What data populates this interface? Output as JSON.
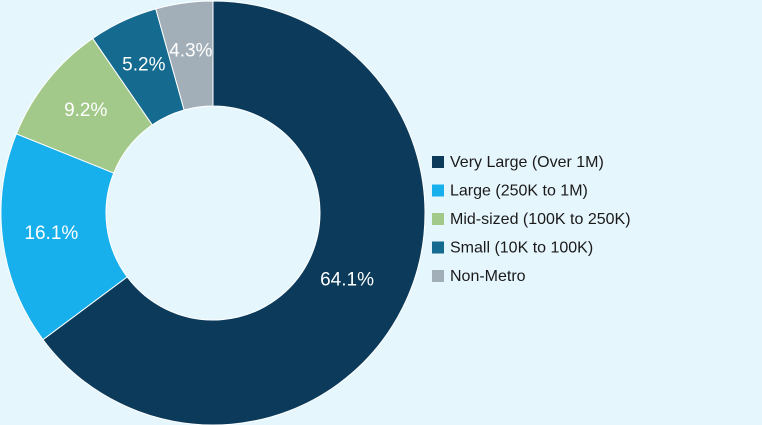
{
  "chart_data": {
    "type": "donut",
    "categories": [
      "Very Large (Over 1M)",
      "Large (250K to 1M)",
      "Mid-sized (100K to 250K)",
      "Small (10K to 100K)",
      "Non-Metro"
    ],
    "values": [
      64.1,
      16.1,
      9.2,
      5.2,
      4.3
    ],
    "value_labels": [
      "64.1%",
      "16.1%",
      "9.2%",
      "5.2%",
      "4.3%"
    ],
    "colors": [
      "#0b3a5b",
      "#18b0ec",
      "#a3c98a",
      "#146b8f",
      "#a3afb8"
    ],
    "legend": "right"
  }
}
